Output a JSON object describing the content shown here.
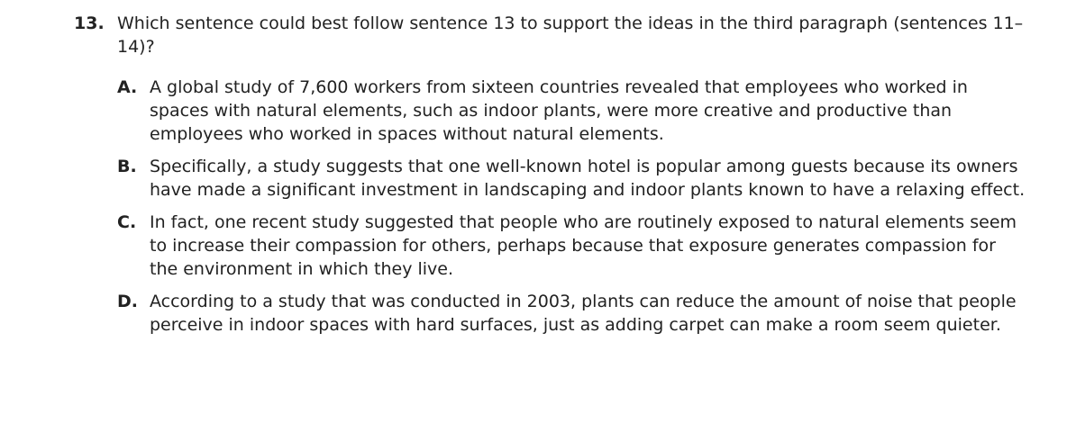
{
  "question": {
    "number": "13.",
    "stem": "Which sentence could best follow sentence 13 to support the ideas in the third paragraph (sentences 11–14)?",
    "choices": [
      {
        "letter": "A.",
        "text": "A global study of 7,600 workers from sixteen countries revealed that employees who worked in spaces with natural elements, such as indoor plants, were more creative and productive than employees who worked in spaces without natural elements."
      },
      {
        "letter": "B.",
        "text": "Specifically, a study suggests that one well-known hotel is popular among guests because its owners have made a significant investment in landscaping and indoor plants known to have a relaxing effect."
      },
      {
        "letter": "C.",
        "text": "In fact, one recent study suggested that people who are routinely exposed to natural elements seem to increase their compassion for others, perhaps because that exposure generates compassion for the environment in which they live."
      },
      {
        "letter": "D.",
        "text": "According to a study that was conducted in 2003, plants can reduce the amount of noise that people perceive in indoor spaces with hard surfaces, just as adding carpet can make a room seem quieter."
      }
    ]
  }
}
